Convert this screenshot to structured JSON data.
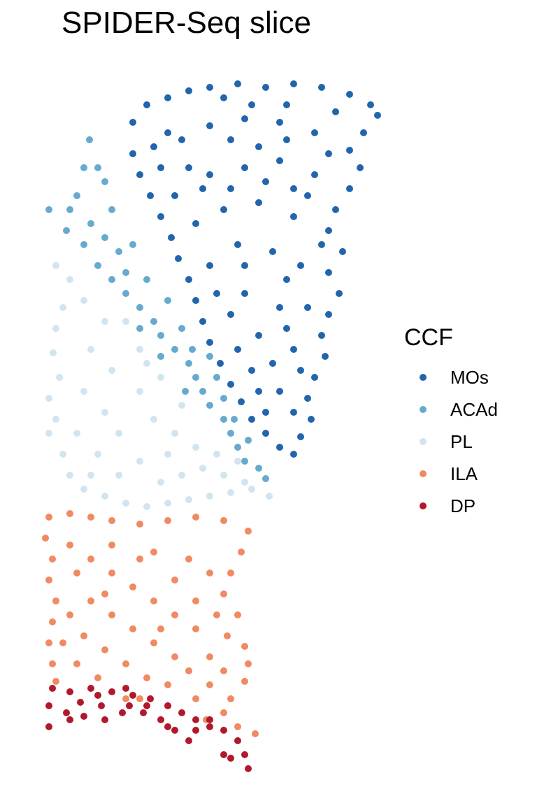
{
  "chart_data": {
    "type": "scatter",
    "title": "SPIDER-Seq slice",
    "xlabel": "",
    "ylabel": "",
    "grid": false,
    "legend": {
      "title": "CCF",
      "placement": "right",
      "entries": [
        {
          "label": "MOs",
          "color": "#2166AC"
        },
        {
          "label": "ACAd",
          "color": "#67A9CF"
        },
        {
          "label": "PL",
          "color": "#D1E5F0"
        },
        {
          "label": "ILA",
          "color": "#EF8A62"
        },
        {
          "label": "DP",
          "color": "#B2182B"
        }
      ]
    },
    "series": [
      {
        "name": "MOs",
        "color": "#2166AC",
        "points": [
          [
            190,
            175
          ],
          [
            210,
            150
          ],
          [
            240,
            140
          ],
          [
            270,
            130
          ],
          [
            300,
            125
          ],
          [
            340,
            120
          ],
          [
            380,
            125
          ],
          [
            420,
            120
          ],
          [
            460,
            125
          ],
          [
            500,
            135
          ],
          [
            530,
            150
          ],
          [
            540,
            165
          ],
          [
            520,
            190
          ],
          [
            500,
            215
          ],
          [
            515,
            240
          ],
          [
            500,
            270
          ],
          [
            480,
            300
          ],
          [
            470,
            330
          ],
          [
            490,
            360
          ],
          [
            470,
            390
          ],
          [
            485,
            420
          ],
          [
            470,
            450
          ],
          [
            460,
            480
          ],
          [
            465,
            510
          ],
          [
            450,
            540
          ],
          [
            440,
            570
          ],
          [
            445,
            600
          ],
          [
            430,
            625
          ],
          [
            420,
            650
          ],
          [
            400,
            640
          ],
          [
            380,
            620
          ],
          [
            360,
            600
          ],
          [
            345,
            575
          ],
          [
            330,
            550
          ],
          [
            315,
            520
          ],
          [
            300,
            490
          ],
          [
            290,
            460
          ],
          [
            280,
            430
          ],
          [
            270,
            400
          ],
          [
            255,
            370
          ],
          [
            245,
            340
          ],
          [
            230,
            310
          ],
          [
            215,
            280
          ],
          [
            200,
            250
          ],
          [
            190,
            220
          ],
          [
            260,
            200
          ],
          [
            300,
            180
          ],
          [
            350,
            170
          ],
          [
            400,
            175
          ],
          [
            450,
            190
          ],
          [
            300,
            250
          ],
          [
            350,
            240
          ],
          [
            400,
            230
          ],
          [
            450,
            250
          ],
          [
            320,
            300
          ],
          [
            370,
            290
          ],
          [
            420,
            310
          ],
          [
            340,
            350
          ],
          [
            390,
            360
          ],
          [
            430,
            380
          ],
          [
            350,
            420
          ],
          [
            400,
            440
          ],
          [
            370,
            480
          ],
          [
            420,
            500
          ],
          [
            360,
            530
          ],
          [
            400,
            560
          ],
          [
            380,
            590
          ],
          [
            420,
            590
          ],
          [
            280,
            320
          ],
          [
            300,
            380
          ],
          [
            240,
            190
          ],
          [
            220,
            210
          ],
          [
            330,
            200
          ],
          [
            370,
            210
          ],
          [
            410,
            200
          ],
          [
            470,
            220
          ],
          [
            440,
            280
          ],
          [
            460,
            350
          ],
          [
            330,
            450
          ],
          [
            310,
            420
          ],
          [
            390,
            520
          ],
          [
            340,
            500
          ],
          [
            410,
            470
          ],
          [
            350,
            380
          ],
          [
            290,
            270
          ],
          [
            330,
            270
          ],
          [
            380,
            260
          ],
          [
            420,
            270
          ],
          [
            250,
            280
          ],
          [
            270,
            240
          ],
          [
            230,
            240
          ],
          [
            320,
            140
          ],
          [
            360,
            150
          ],
          [
            410,
            150
          ],
          [
            480,
            160
          ],
          [
            410,
            400
          ],
          [
            440,
            440
          ],
          [
            430,
            530
          ],
          [
            370,
            560
          ]
        ]
      },
      {
        "name": "ACAd",
        "color": "#67A9CF",
        "points": [
          [
            128,
            200
          ],
          [
            120,
            240
          ],
          [
            110,
            280
          ],
          [
            70,
            300
          ],
          [
            100,
            300
          ],
          [
            130,
            320
          ],
          [
            150,
            340
          ],
          [
            170,
            360
          ],
          [
            190,
            350
          ],
          [
            120,
            350
          ],
          [
            140,
            380
          ],
          [
            160,
            400
          ],
          [
            180,
            420
          ],
          [
            200,
            440
          ],
          [
            220,
            460
          ],
          [
            230,
            480
          ],
          [
            250,
            500
          ],
          [
            270,
            520
          ],
          [
            280,
            540
          ],
          [
            290,
            560
          ],
          [
            300,
            580
          ],
          [
            320,
            600
          ],
          [
            330,
            620
          ],
          [
            340,
            640
          ],
          [
            350,
            660
          ],
          [
            370,
            670
          ],
          [
            380,
            685
          ],
          [
            150,
            260
          ],
          [
            160,
            300
          ],
          [
            180,
            390
          ],
          [
            210,
            400
          ],
          [
            240,
            430
          ],
          [
            260,
            470
          ],
          [
            275,
            500
          ],
          [
            300,
            510
          ],
          [
            310,
            540
          ],
          [
            320,
            570
          ],
          [
            335,
            600
          ],
          [
            355,
            630
          ],
          [
            140,
            240
          ],
          [
            95,
            330
          ],
          [
            200,
            470
          ],
          [
            230,
            510
          ],
          [
            265,
            560
          ]
        ]
      },
      {
        "name": "PL",
        "color": "#D1E5F0",
        "points": [
          [
            80,
            380
          ],
          [
            100,
            400
          ],
          [
            90,
            440
          ],
          [
            80,
            470
          ],
          [
            76,
            505
          ],
          [
            85,
            540
          ],
          [
            70,
            570
          ],
          [
            80,
            600
          ],
          [
            70,
            620
          ],
          [
            90,
            650
          ],
          [
            100,
            680
          ],
          [
            120,
            700
          ],
          [
            150,
            710
          ],
          [
            180,
            720
          ],
          [
            210,
            725
          ],
          [
            240,
            720
          ],
          [
            270,
            715
          ],
          [
            300,
            710
          ],
          [
            330,
            705
          ],
          [
            360,
            700
          ],
          [
            385,
            710
          ],
          [
            120,
            430
          ],
          [
            150,
            460
          ],
          [
            130,
            500
          ],
          [
            160,
            530
          ],
          [
            120,
            560
          ],
          [
            150,
            590
          ],
          [
            110,
            620
          ],
          [
            140,
            650
          ],
          [
            170,
            680
          ],
          [
            200,
            660
          ],
          [
            230,
            690
          ],
          [
            260,
            680
          ],
          [
            290,
            670
          ],
          [
            320,
            680
          ],
          [
            350,
            690
          ],
          [
            200,
            560
          ],
          [
            220,
            600
          ],
          [
            250,
            620
          ],
          [
            280,
            640
          ],
          [
            200,
            500
          ],
          [
            230,
            540
          ],
          [
            260,
            580
          ],
          [
            180,
            460
          ],
          [
            210,
            520
          ],
          [
            240,
            650
          ],
          [
            310,
            650
          ],
          [
            340,
            660
          ],
          [
            170,
            620
          ],
          [
            130,
            680
          ]
        ]
      },
      {
        "name": "ILA",
        "color": "#EF8A62",
        "points": [
          [
            70,
            740
          ],
          [
            100,
            735
          ],
          [
            130,
            740
          ],
          [
            160,
            745
          ],
          [
            200,
            750
          ],
          [
            240,
            745
          ],
          [
            280,
            740
          ],
          [
            320,
            745
          ],
          [
            355,
            760
          ],
          [
            345,
            790
          ],
          [
            330,
            820
          ],
          [
            320,
            850
          ],
          [
            310,
            880
          ],
          [
            325,
            910
          ],
          [
            350,
            925
          ],
          [
            355,
            950
          ],
          [
            350,
            975
          ],
          [
            330,
            1000
          ],
          [
            320,
            1020
          ],
          [
            340,
            1040
          ],
          [
            365,
            1050
          ],
          [
            65,
            770
          ],
          [
            75,
            800
          ],
          [
            70,
            830
          ],
          [
            80,
            860
          ],
          [
            75,
            890
          ],
          [
            70,
            920
          ],
          [
            75,
            950
          ],
          [
            80,
            975
          ],
          [
            100,
            780
          ],
          [
            130,
            800
          ],
          [
            160,
            820
          ],
          [
            190,
            840
          ],
          [
            220,
            860
          ],
          [
            250,
            880
          ],
          [
            280,
            900
          ],
          [
            300,
            940
          ],
          [
            270,
            960
          ],
          [
            240,
            980
          ],
          [
            210,
            970
          ],
          [
            180,
            950
          ],
          [
            150,
            930
          ],
          [
            120,
            910
          ],
          [
            100,
            880
          ],
          [
            130,
            860
          ],
          [
            160,
            880
          ],
          [
            190,
            900
          ],
          [
            220,
            920
          ],
          [
            250,
            940
          ],
          [
            110,
            950
          ],
          [
            140,
            970
          ],
          [
            200,
            1000
          ],
          [
            240,
            1010
          ],
          [
            280,
            1000
          ],
          [
            300,
            980
          ],
          [
            110,
            820
          ],
          [
            160,
            780
          ],
          [
            220,
            790
          ],
          [
            270,
            800
          ],
          [
            300,
            820
          ],
          [
            280,
            860
          ],
          [
            250,
            830
          ],
          [
            200,
            800
          ],
          [
            150,
            850
          ],
          [
            90,
            920
          ],
          [
            340,
            880
          ],
          [
            295,
            1030
          ],
          [
            320,
            960
          ],
          [
            230,
            900
          ],
          [
            180,
            1000
          ]
        ]
      },
      {
        "name": "DP",
        "color": "#B2182B",
        "points": [
          [
            75,
            985
          ],
          [
            100,
            990
          ],
          [
            130,
            985
          ],
          [
            160,
            990
          ],
          [
            190,
            995
          ],
          [
            215,
            1000
          ],
          [
            240,
            1010
          ],
          [
            260,
            1020
          ],
          [
            280,
            1030
          ],
          [
            300,
            1040
          ],
          [
            320,
            1045
          ],
          [
            70,
            1010
          ],
          [
            95,
            1020
          ],
          [
            120,
            1025
          ],
          [
            150,
            1030
          ],
          [
            175,
            1020
          ],
          [
            205,
            1020
          ],
          [
            230,
            1030
          ],
          [
            250,
            1045
          ],
          [
            270,
            1060
          ],
          [
            70,
            1040
          ],
          [
            100,
            1030
          ],
          [
            145,
            1010
          ],
          [
            185,
            1010
          ],
          [
            240,
            1040
          ],
          [
            280,
            1045
          ],
          [
            300,
            1030
          ],
          [
            340,
            1060
          ],
          [
            350,
            1080
          ],
          [
            355,
            1100
          ],
          [
            330,
            1085
          ],
          [
            320,
            1080
          ],
          [
            140,
            995
          ],
          [
            180,
            985
          ],
          [
            210,
            1010
          ],
          [
            115,
            1005
          ]
        ]
      }
    ]
  }
}
